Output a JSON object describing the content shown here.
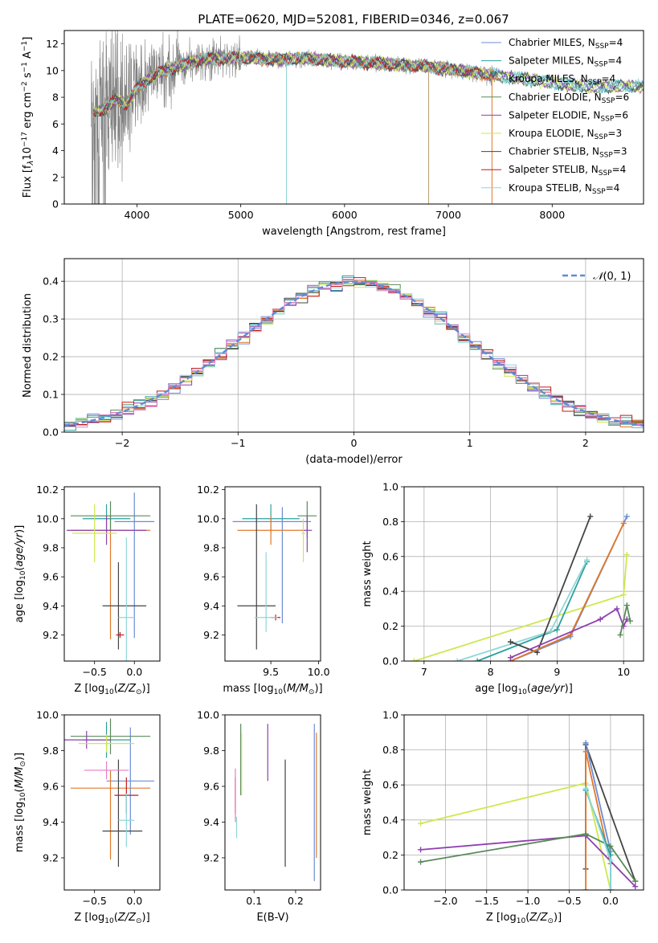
{
  "figure": {
    "title": "PLATE=0620, MJD=52081, FIBERID=0346, z=0.067"
  },
  "chart_data": [
    {
      "id": "spectrum",
      "type": "line",
      "xlabel": "wavelength [Angstrom, rest frame]",
      "ylabel": "Flux [f_λ10^-17 erg cm^-2 s^-1 A^-1]",
      "xlim": [
        3300,
        8880
      ],
      "ylim": [
        0,
        13
      ],
      "xticks": [
        4000,
        5000,
        6000,
        7000,
        8000
      ],
      "yticks": [
        0,
        2,
        4,
        6,
        8,
        10,
        12
      ],
      "grid": false,
      "legend_position": "upper-right",
      "data_color": "#808080",
      "data_x_range": [
        3560,
        7480
      ],
      "legend": [
        {
          "name": "Chabrier MILES, N_SSP=4",
          "color": "#6b8cd6"
        },
        {
          "name": "Salpeter MILES, N_SSP=4",
          "color": "#2aa0a0"
        },
        {
          "name": "Kroupa MILES, N_SSP=4",
          "color": "#e0782c"
        },
        {
          "name": "Chabrier ELODIE, N_SSP=6",
          "color": "#5a8a5a"
        },
        {
          "name": "Salpeter ELODIE, N_SSP=6",
          "color": "#8e3fb0"
        },
        {
          "name": "Kroupa ELODIE, N_SSP=3",
          "color": "#cde84f"
        },
        {
          "name": "Chabrier STELIB, N_SSP=3",
          "color": "#444444"
        },
        {
          "name": "Salpeter STELIB, N_SSP=4",
          "color": "#c41a1a"
        },
        {
          "name": "Kroupa STELIB, N_SSP=4",
          "color": "#8fd6d6"
        }
      ],
      "continuum_model": [
        [
          3600,
          6.8
        ],
        [
          3700,
          7.2
        ],
        [
          3800,
          7.8
        ],
        [
          3900,
          7.5
        ],
        [
          4000,
          8.7
        ],
        [
          4100,
          9.3
        ],
        [
          4200,
          9.8
        ],
        [
          4400,
          10.3
        ],
        [
          4600,
          10.8
        ],
        [
          4800,
          10.9
        ],
        [
          5000,
          11.0
        ],
        [
          5200,
          10.9
        ],
        [
          5400,
          10.8
        ],
        [
          5600,
          10.9
        ],
        [
          5800,
          10.8
        ],
        [
          6000,
          10.7
        ],
        [
          6200,
          10.6
        ],
        [
          6400,
          10.5
        ],
        [
          6600,
          10.4
        ],
        [
          6800,
          10.3
        ],
        [
          7000,
          10.1
        ],
        [
          7200,
          9.9
        ],
        [
          7400,
          9.7
        ],
        [
          7600,
          9.5
        ],
        [
          7800,
          9.3
        ],
        [
          8000,
          9.1
        ],
        [
          8200,
          8.9
        ],
        [
          8400,
          8.8
        ]
      ]
    },
    {
      "id": "residuals",
      "type": "histogram",
      "xlabel": "(data-model)/error",
      "ylabel": "Normed distribution",
      "xlim": [
        -2.5,
        2.5
      ],
      "ylim": [
        0,
        0.46
      ],
      "xticks": [
        -2,
        -1,
        0,
        1,
        2
      ],
      "yticks": [
        0.0,
        0.1,
        0.2,
        0.3,
        0.4
      ],
      "grid": true,
      "legend_position": "upper-right",
      "legend": [
        {
          "name": "N(0,1)",
          "style": "dashed",
          "color": "#5f8bd6"
        }
      ],
      "bin_edges_range": [
        -2.5,
        2.5
      ],
      "bins": 50
    },
    {
      "id": "age_vs_Z",
      "type": "errorbar",
      "xlabel": "Z [log10(Z/Z_sun)]",
      "ylabel": "age [log10(age/yr)]",
      "xlim": [
        -0.88,
        0.32
      ],
      "ylim": [
        9.02,
        10.22
      ],
      "xticks": [
        -0.5,
        0.0
      ],
      "yticks": [
        9.2,
        9.4,
        9.6,
        9.8,
        10.0,
        10.2
      ],
      "points": [
        {
          "color": "#6b8cd6",
          "x": 0.0,
          "xerr": [
            0.25,
            0.25
          ],
          "y": 9.98,
          "yerr": [
            0.8,
            0.2
          ]
        },
        {
          "color": "#2aa0a0",
          "x": -0.35,
          "xerr": [
            0.3,
            0.3
          ],
          "y": 10.0,
          "yerr": [
            0.1,
            0.1
          ]
        },
        {
          "color": "#e0782c",
          "x": -0.3,
          "xerr": [
            0.5,
            0.5
          ],
          "y": 9.92,
          "yerr": [
            0.75,
            0.1
          ]
        },
        {
          "color": "#5a8a5a",
          "x": -0.3,
          "xerr": [
            0.5,
            0.5
          ],
          "y": 10.02,
          "yerr": [
            0.1,
            0.1
          ]
        },
        {
          "color": "#8e3fb0",
          "x": -0.35,
          "xerr": [
            0.5,
            0.5
          ],
          "y": 9.92,
          "yerr": [
            0.1,
            0.1
          ]
        },
        {
          "color": "#cde84f",
          "x": -0.5,
          "xerr": [
            0.28,
            0.28
          ],
          "y": 9.9,
          "yerr": [
            0.2,
            0.2
          ]
        },
        {
          "color": "#444444",
          "x": -0.2,
          "xerr": [
            0.2,
            0.35
          ],
          "y": 9.4,
          "yerr": [
            0.3,
            0.3
          ]
        },
        {
          "color": "#c41a1a",
          "x": -0.18,
          "xerr": [
            0.05,
            0.05
          ],
          "y": 9.2,
          "yerr": [
            0.02,
            0.02
          ]
        },
        {
          "color": "#8fd6d6",
          "x": -0.1,
          "xerr": [
            0.1,
            0.1
          ],
          "y": 9.32,
          "yerr": [
            0.55,
            0.55
          ]
        }
      ]
    },
    {
      "id": "age_vs_mass",
      "type": "errorbar",
      "xlabel": "mass [log10(M/M_sun)]",
      "ylabel": "",
      "xlim": [
        9.02,
        10.02
      ],
      "ylim": [
        9.02,
        10.22
      ],
      "xticks": [
        9.5,
        10.0
      ],
      "yticks": [
        9.2,
        9.4,
        9.6,
        9.8,
        10.0,
        10.2
      ],
      "points": [
        {
          "color": "#6b8cd6",
          "x": 9.62,
          "xerr": [
            0.52,
            0.3
          ],
          "y": 9.98,
          "yerr": [
            0.7,
            0.1
          ]
        },
        {
          "color": "#2aa0a0",
          "x": 9.5,
          "xerr": [
            0.3,
            0.3
          ],
          "y": 10.0,
          "yerr": [
            0.1,
            0.1
          ]
        },
        {
          "color": "#e0782c",
          "x": 9.5,
          "xerr": [
            0.35,
            0.35
          ],
          "y": 9.92,
          "yerr": [
            0.1,
            0.1
          ]
        },
        {
          "color": "#5a8a5a",
          "x": 9.88,
          "xerr": [
            0.1,
            0.1
          ],
          "y": 10.02,
          "yerr": [
            0.15,
            0.1
          ]
        },
        {
          "color": "#8e3fb0",
          "x": 9.88,
          "xerr": [
            0.05,
            0.05
          ],
          "y": 9.92,
          "yerr": [
            0.15,
            0.1
          ]
        },
        {
          "color": "#cde84f",
          "x": 9.84,
          "xerr": [
            0.02,
            0.02
          ],
          "y": 9.9,
          "yerr": [
            0.2,
            0.1
          ]
        },
        {
          "color": "#444444",
          "x": 9.35,
          "xerr": [
            0.2,
            0.2
          ],
          "y": 9.4,
          "yerr": [
            0.3,
            0.7
          ]
        },
        {
          "color": "#c41a1a",
          "x": 9.55,
          "xerr": [
            0.05,
            0.05
          ],
          "y": 9.32,
          "yerr": [
            0.02,
            0.02
          ]
        },
        {
          "color": "#8fd6d6",
          "x": 9.45,
          "xerr": [
            0.12,
            0.12
          ],
          "y": 9.32,
          "yerr": [
            0.1,
            0.45
          ]
        }
      ]
    },
    {
      "id": "massweight_vs_age",
      "type": "line",
      "xlabel": "age [log10(age/yr)]",
      "ylabel": "mass weight",
      "xlim": [
        6.7,
        10.3
      ],
      "ylim": [
        0.0,
        1.0
      ],
      "xticks": [
        7,
        8,
        9,
        10
      ],
      "yticks": [
        0.0,
        0.2,
        0.4,
        0.6,
        0.8,
        1.0
      ],
      "grid": true,
      "series": [
        {
          "color": "#cde84f",
          "x": [
            6.85,
            10.0,
            10.05
          ],
          "y": [
            0.0,
            0.38,
            0.61
          ]
        },
        {
          "color": "#2aa0a0",
          "x": [
            7.8,
            9.0,
            9.45
          ],
          "y": [
            0.0,
            0.18,
            0.57
          ]
        },
        {
          "color": "#8fd6d6",
          "x": [
            7.5,
            8.9,
            9.45
          ],
          "y": [
            0.0,
            0.17,
            0.58
          ]
        },
        {
          "color": "#444444",
          "x": [
            8.3,
            8.7,
            9.5
          ],
          "y": [
            0.11,
            0.05,
            0.83
          ]
        },
        {
          "color": "#6b8cd6",
          "x": [
            8.3,
            9.2,
            10.05
          ],
          "y": [
            0.0,
            0.14,
            0.83
          ]
        },
        {
          "color": "#e0782c",
          "x": [
            8.3,
            9.2,
            10.0
          ],
          "y": [
            0.0,
            0.15,
            0.79
          ]
        },
        {
          "color": "#8e3fb0",
          "x": [
            8.3,
            9.65,
            9.9,
            10.0,
            10.05
          ],
          "y": [
            0.02,
            0.24,
            0.3,
            0.2,
            0.24
          ]
        },
        {
          "color": "#5a8a5a",
          "x": [
            9.95,
            10.05,
            10.1
          ],
          "y": [
            0.15,
            0.32,
            0.23
          ]
        }
      ]
    },
    {
      "id": "mass_vs_Z",
      "type": "errorbar",
      "xlabel": "Z [log10(Z/Z_sun)]",
      "ylabel": "mass [log10(M/M_sun)]",
      "xlim": [
        -0.88,
        0.32
      ],
      "ylim": [
        9.02,
        10.0
      ],
      "xticks": [
        -0.5,
        0.0
      ],
      "yticks": [
        9.2,
        9.4,
        9.6,
        9.8,
        10.0
      ],
      "points": [
        {
          "color": "#6b8cd6",
          "x": -0.05,
          "xerr": [
            0.3,
            0.3
          ],
          "y": 9.63,
          "yerr": [
            0.3,
            0.3
          ]
        },
        {
          "color": "#2aa0a0",
          "x": -0.35,
          "xerr": [
            0.3,
            0.3
          ],
          "y": 9.86,
          "yerr": [
            0.1,
            0.1
          ]
        },
        {
          "color": "#e0782c",
          "x": -0.3,
          "xerr": [
            0.5,
            0.5
          ],
          "y": 9.59,
          "yerr": [
            0.4,
            0.1
          ]
        },
        {
          "color": "#5a8a5a",
          "x": -0.3,
          "xerr": [
            0.5,
            0.5
          ],
          "y": 9.88,
          "yerr": [
            0.1,
            0.1
          ]
        },
        {
          "color": "#8e3fb0",
          "x": -0.6,
          "xerr": [
            0.3,
            0.3
          ],
          "y": 9.86,
          "yerr": [
            0.05,
            0.05
          ]
        },
        {
          "color": "#cde84f",
          "x": -0.35,
          "xerr": [
            0.35,
            0.35
          ],
          "y": 9.84,
          "yerr": [
            0.05,
            0.05
          ]
        },
        {
          "color": "#444444",
          "x": -0.2,
          "xerr": [
            0.2,
            0.3
          ],
          "y": 9.35,
          "yerr": [
            0.2,
            0.4
          ]
        },
        {
          "color": "#c41a1a",
          "x": -0.1,
          "xerr": [
            0.15,
            0.15
          ],
          "y": 9.55,
          "yerr": [
            0.1,
            0.1
          ]
        },
        {
          "color": "#8fd6d6",
          "x": -0.1,
          "xerr": [
            0.1,
            0.1
          ],
          "y": 9.41,
          "yerr": [
            0.15,
            0.15
          ]
        },
        {
          "color": "#e57ec8",
          "x": -0.35,
          "xerr": [
            0.28,
            0.28
          ],
          "y": 9.69,
          "yerr": [
            0.05,
            0.05
          ]
        }
      ]
    },
    {
      "id": "mass_vs_ebv",
      "type": "errorbar",
      "xlabel": "E(B-V)",
      "ylabel": "",
      "xlim": [
        0.03,
        0.26
      ],
      "ylim": [
        9.02,
        10.0
      ],
      "xticks": [
        0.1,
        0.2
      ],
      "yticks": [
        9.2,
        9.4,
        9.6,
        9.8,
        10.0
      ],
      "points": [
        {
          "color": "#6b8cd6",
          "x": 0.245,
          "xerr": [
            0.0,
            0.0
          ],
          "y": 9.52,
          "yerr": [
            0.45,
            0.43
          ]
        },
        {
          "color": "#e0782c",
          "x": 0.25,
          "xerr": [
            0.0,
            0.0
          ],
          "y": 9.55,
          "yerr": [
            0.35,
            0.35
          ]
        },
        {
          "color": "#5a8a5a",
          "x": 0.068,
          "xerr": [
            0.0,
            0.0
          ],
          "y": 9.75,
          "yerr": [
            0.2,
            0.2
          ]
        },
        {
          "color": "#8e3fb0",
          "x": 0.133,
          "xerr": [
            0.0,
            0.0
          ],
          "y": 9.79,
          "yerr": [
            0.16,
            0.16
          ]
        },
        {
          "color": "#cde84f",
          "x": 0.07,
          "xerr": [
            0.0,
            0.0
          ],
          "y": 9.75,
          "yerr": [
            0.2,
            0.15
          ]
        },
        {
          "color": "#444444",
          "x": 0.175,
          "xerr": [
            0.0,
            0.0
          ],
          "y": 9.45,
          "yerr": [
            0.3,
            0.3
          ]
        },
        {
          "color": "#c41a1a",
          "x": 0.055,
          "xerr": [
            0.0,
            0.0
          ],
          "y": 9.55,
          "yerr": [
            0.1,
            0.1
          ]
        },
        {
          "color": "#8fd6d6",
          "x": 0.058,
          "xerr": [
            0.0,
            0.0
          ],
          "y": 9.37,
          "yerr": [
            0.06,
            0.06
          ]
        },
        {
          "color": "#e57ec8",
          "x": 0.055,
          "xerr": [
            0.0,
            0.0
          ],
          "y": 9.55,
          "yerr": [
            0.15,
            0.15
          ]
        }
      ]
    },
    {
      "id": "massweight_vs_Z",
      "type": "line",
      "xlabel": "Z [log10(Z/Z_sun)]",
      "ylabel": "mass weight",
      "xlim": [
        -2.5,
        0.4
      ],
      "ylim": [
        0.0,
        1.0
      ],
      "xticks": [
        -2.0,
        -1.5,
        -1.0,
        -0.5,
        0.0
      ],
      "yticks": [
        0.0,
        0.2,
        0.4,
        0.6,
        0.8,
        1.0
      ],
      "grid": true,
      "series": [
        {
          "color": "#cde84f",
          "x": [
            -2.3,
            -0.3,
            0.0
          ],
          "y": [
            0.38,
            0.61,
            0.0
          ]
        },
        {
          "color": "#444444",
          "x": [
            -0.3,
            -0.3,
            0.3
          ],
          "y": [
            0.12,
            0.83,
            0.05
          ]
        },
        {
          "color": "#6b8cd6",
          "x": [
            -0.3,
            0.0,
            0.0
          ],
          "y": [
            0.84,
            0.22,
            0.0
          ]
        },
        {
          "color": "#e0782c",
          "x": [
            -0.3,
            -0.3,
            0.0
          ],
          "y": [
            0.0,
            0.79,
            0.15
          ]
        },
        {
          "color": "#8e3fb0",
          "x": [
            -2.3,
            -0.3,
            0.3
          ],
          "y": [
            0.23,
            0.31,
            0.02
          ]
        },
        {
          "color": "#5a8a5a",
          "x": [
            -2.3,
            -0.3,
            0.0,
            0.3
          ],
          "y": [
            0.16,
            0.32,
            0.25,
            0.05
          ]
        },
        {
          "color": "#2aa0a0",
          "x": [
            -0.3,
            0.0,
            0.0
          ],
          "y": [
            0.57,
            0.2,
            0.0
          ]
        },
        {
          "color": "#8fd6d6",
          "x": [
            -0.3,
            0.0,
            0.0
          ],
          "y": [
            0.58,
            0.17,
            0.0
          ]
        }
      ]
    }
  ]
}
